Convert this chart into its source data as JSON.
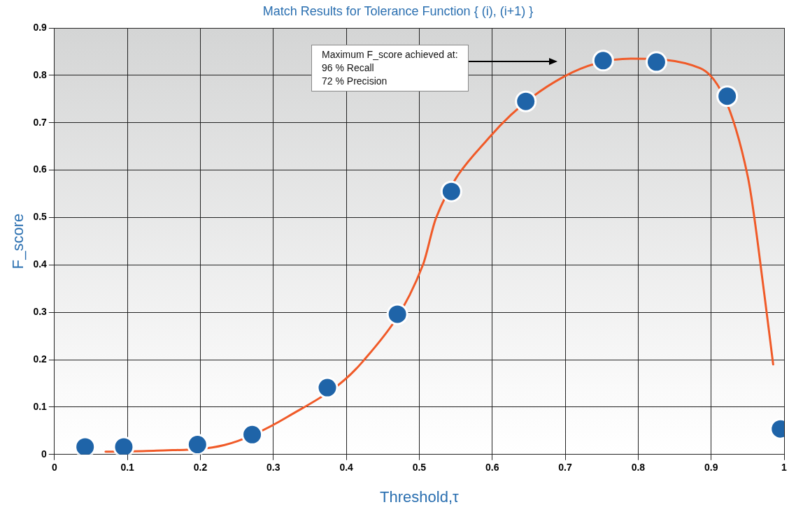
{
  "chart_data": {
    "type": "scatter",
    "title": "Match Results for Tolerance Function { (i), (i+1) }",
    "xlabel": "Threshold,τ",
    "ylabel": "F_score",
    "xlim": [
      0,
      1
    ],
    "xticks": [
      0,
      0.1,
      0.2,
      0.3,
      0.4,
      0.5,
      0.6,
      0.7,
      0.8,
      0.9,
      1
    ],
    "ylim": [
      0,
      0.9
    ],
    "yticks": [
      0,
      0.1,
      0.2,
      0.3,
      0.4,
      0.5,
      0.6,
      0.7,
      0.8,
      0.9
    ],
    "grid": true,
    "legend": false,
    "line_style": "solid",
    "series": [
      {
        "type": "line",
        "marker": "none",
        "color": "#f05a28",
        "x": [
          0.07,
          0.14,
          0.233,
          0.32,
          0.423,
          0.505,
          0.523,
          0.596,
          0.698,
          0.79,
          0.885,
          0.95,
          0.973,
          0.985
        ],
        "values": [
          0.006,
          0.008,
          0.02,
          0.08,
          0.197,
          0.4,
          0.499,
          0.669,
          0.797,
          0.835,
          0.815,
          0.588,
          0.337,
          0.19
        ]
      },
      {
        "type": "scatter",
        "marker": "circle",
        "color": "#1f64a8",
        "x": [
          0.042,
          0.095,
          0.196,
          0.271,
          0.374,
          0.47,
          0.544,
          0.646,
          0.752,
          0.825,
          0.922,
          0.995
        ],
        "values": [
          0.016,
          0.016,
          0.021,
          0.042,
          0.141,
          0.296,
          0.555,
          0.745,
          0.831,
          0.828,
          0.756,
          0.054
        ]
      }
    ],
    "annotations": [
      "Maximum F_score achieved at:\n96 % Recall\n72 % Precision"
    ]
  }
}
